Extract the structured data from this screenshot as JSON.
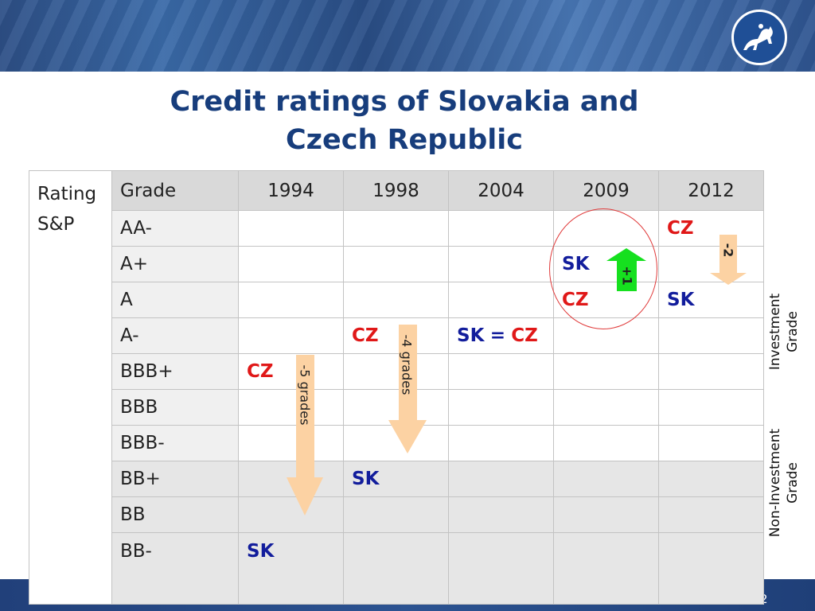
{
  "title_line1": "Credit ratings of Slovakia and",
  "title_line2": "Czech Republic",
  "table": {
    "corner_label": "Rating S&P",
    "grade_header": "Grade",
    "years": [
      "1994",
      "1998",
      "2004",
      "2009",
      "2012"
    ],
    "rows": [
      {
        "grade": "AA-",
        "cells": [
          "",
          "",
          "",
          "",
          "CZ"
        ]
      },
      {
        "grade": "A+",
        "cells": [
          "",
          "",
          "",
          "SK",
          ""
        ]
      },
      {
        "grade": "A",
        "cells": [
          "",
          "",
          "",
          "CZ",
          "SK"
        ]
      },
      {
        "grade": "A-",
        "cells": [
          "",
          "CZ",
          "SK = CZ",
          "",
          ""
        ]
      },
      {
        "grade": "BBB+",
        "cells": [
          "CZ",
          "",
          "",
          "",
          ""
        ]
      },
      {
        "grade": "BBB",
        "cells": [
          "",
          "",
          "",
          "",
          ""
        ]
      },
      {
        "grade": "BBB-",
        "cells": [
          "",
          "",
          "",
          "",
          ""
        ]
      },
      {
        "grade": "BB+",
        "cells": [
          "",
          "SK",
          "",
          "",
          ""
        ]
      },
      {
        "grade": "BB",
        "cells": [
          "",
          "",
          "",
          "",
          ""
        ]
      },
      {
        "grade": "BB-",
        "cells": [
          "SK",
          "",
          "",
          "",
          ""
        ]
      }
    ]
  },
  "sk_label": "SK",
  "eq_label": "=",
  "cz_label": "CZ",
  "arrows": {
    "cz_1994": "-5 grades",
    "sk_1998": "-4 grades",
    "sk_2009": "+1",
    "cz_2012": "-2"
  },
  "side_labels": {
    "investment_line1": "Investment",
    "investment_line2": "Grade",
    "non_investment_line1": "Non-Investment",
    "non_investment_line2": "Grade"
  },
  "page_number": "2",
  "colors": {
    "title": "#173d7c",
    "cz": "#e01818",
    "sk": "#121d9c",
    "arrow_down": "#fcd2a3",
    "arrow_up": "#16e01f",
    "circle": "#e03a3a"
  }
}
